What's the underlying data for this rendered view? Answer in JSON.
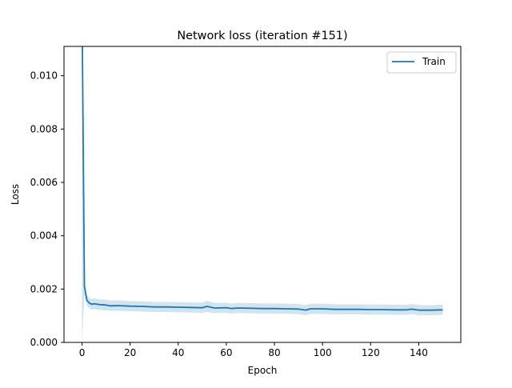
{
  "chart_data": {
    "type": "line",
    "title": "Network loss (iteration #151)",
    "xlabel": "Epoch",
    "ylabel": "Loss",
    "xlim": [
      -7.5,
      157.5
    ],
    "ylim": [
      0,
      0.0111
    ],
    "x_ticks": [
      0,
      20,
      40,
      60,
      80,
      100,
      120,
      140
    ],
    "x_tick_labels": [
      "0",
      "20",
      "40",
      "60",
      "80",
      "100",
      "120",
      "140"
    ],
    "y_ticks": [
      0,
      0.002,
      0.004,
      0.006,
      0.008,
      0.01
    ],
    "y_tick_labels": [
      "0.000",
      "0.002",
      "0.004",
      "0.006",
      "0.008",
      "0.010"
    ],
    "grid": false,
    "legend_position": "top-right",
    "series": [
      {
        "name": "Train",
        "color": "#1f77b4",
        "band_color": "#1f77b4",
        "x": [
          0,
          1,
          2,
          3,
          4,
          5,
          7,
          10,
          12,
          15,
          20,
          25,
          30,
          35,
          40,
          45,
          50,
          52,
          55,
          60,
          62,
          65,
          70,
          75,
          80,
          85,
          90,
          93,
          95,
          100,
          105,
          110,
          115,
          120,
          125,
          130,
          135,
          137,
          140,
          145,
          150
        ],
        "y": [
          0.0125,
          0.0021,
          0.00158,
          0.00148,
          0.00143,
          0.00145,
          0.00142,
          0.0014,
          0.00137,
          0.00138,
          0.00136,
          0.00135,
          0.00133,
          0.00133,
          0.00132,
          0.00131,
          0.0013,
          0.00135,
          0.00129,
          0.0013,
          0.00127,
          0.00129,
          0.00128,
          0.00127,
          0.00127,
          0.00126,
          0.00125,
          0.00121,
          0.00126,
          0.00126,
          0.00124,
          0.00124,
          0.00124,
          0.00123,
          0.00123,
          0.00122,
          0.00122,
          0.00125,
          0.00121,
          0.00121,
          0.00122
        ],
        "band_low": [
          0.0,
          0.0018,
          0.00138,
          0.00128,
          0.00123,
          0.00125,
          0.00122,
          0.0012,
          0.00118,
          0.00118,
          0.00117,
          0.00116,
          0.00114,
          0.00114,
          0.00113,
          0.00112,
          0.00111,
          0.00114,
          0.0011,
          0.00111,
          0.00108,
          0.0011,
          0.00109,
          0.00108,
          0.00108,
          0.00107,
          0.00106,
          0.00102,
          0.00107,
          0.00107,
          0.00105,
          0.00105,
          0.00105,
          0.00104,
          0.00104,
          0.00103,
          0.00103,
          0.00106,
          0.00102,
          0.00102,
          0.00103
        ],
        "band_high": [
          0.0125,
          0.0023,
          0.00178,
          0.00168,
          0.00163,
          0.00165,
          0.00162,
          0.0016,
          0.00157,
          0.00158,
          0.00155,
          0.00154,
          0.00152,
          0.00152,
          0.00151,
          0.0015,
          0.00149,
          0.00156,
          0.00148,
          0.00149,
          0.00146,
          0.00148,
          0.00147,
          0.00146,
          0.00146,
          0.00145,
          0.00144,
          0.0014,
          0.00145,
          0.00145,
          0.00143,
          0.00143,
          0.00143,
          0.00142,
          0.00142,
          0.00141,
          0.00141,
          0.00144,
          0.0014,
          0.0014,
          0.00141
        ]
      }
    ]
  }
}
